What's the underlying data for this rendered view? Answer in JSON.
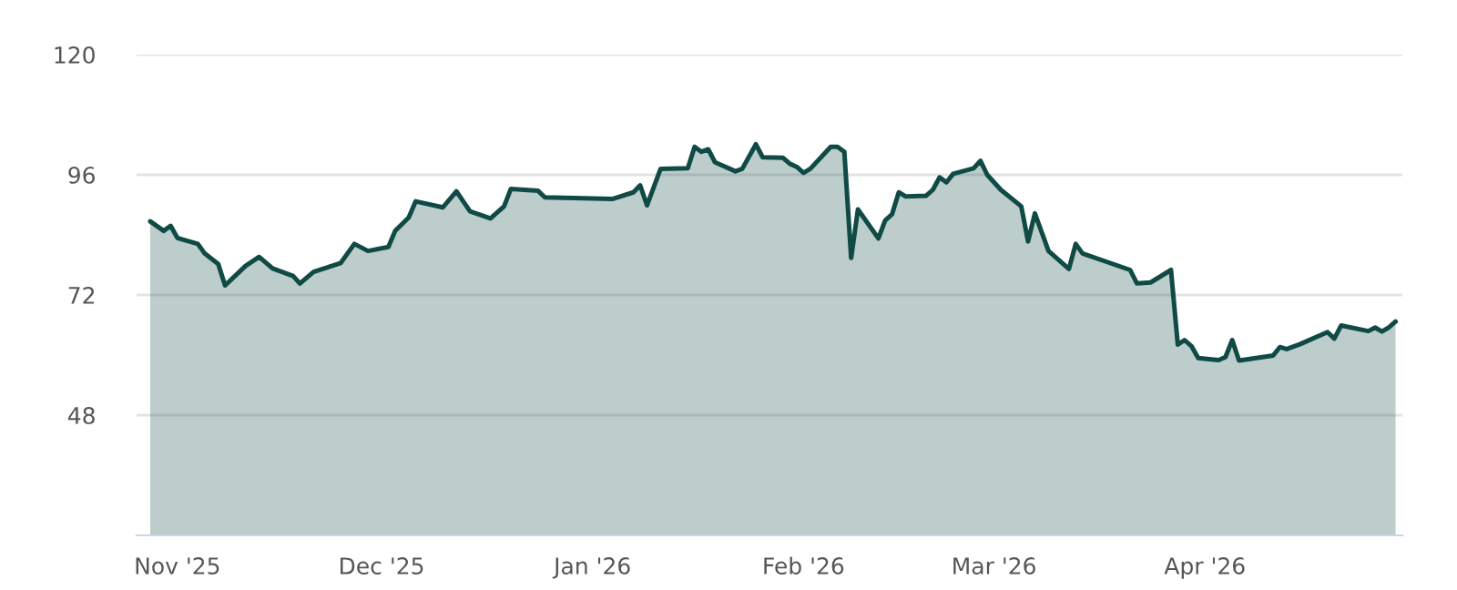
{
  "chart_data": {
    "type": "area",
    "x": [
      "2025-10-28",
      "2025-10-30",
      "2025-10-31",
      "2025-11-01",
      "2025-11-04",
      "2025-11-05",
      "2025-11-07",
      "2025-11-08",
      "2025-11-11",
      "2025-11-13",
      "2025-11-15",
      "2025-11-18",
      "2025-11-19",
      "2025-11-21",
      "2025-11-25",
      "2025-11-27",
      "2025-11-29",
      "2025-12-02",
      "2025-12-03",
      "2025-12-05",
      "2025-12-06",
      "2025-12-10",
      "2025-12-12",
      "2025-12-14",
      "2025-12-17",
      "2025-12-19",
      "2025-12-20",
      "2025-12-24",
      "2025-12-25",
      "2026-01-04",
      "2026-01-07",
      "2026-01-08",
      "2026-01-09",
      "2026-01-11",
      "2026-01-15",
      "2026-01-16",
      "2026-01-17",
      "2026-01-18",
      "2026-01-19",
      "2026-01-22",
      "2026-01-23",
      "2026-01-25",
      "2026-01-26",
      "2026-01-29",
      "2026-01-30",
      "2026-01-31",
      "2026-02-01",
      "2026-02-02",
      "2026-02-05",
      "2026-02-06",
      "2026-02-07",
      "2026-02-08",
      "2026-02-09",
      "2026-02-12",
      "2026-02-13",
      "2026-02-14",
      "2026-02-15",
      "2026-02-16",
      "2026-02-19",
      "2026-02-20",
      "2026-02-21",
      "2026-02-22",
      "2026-02-23",
      "2026-02-26",
      "2026-02-27",
      "2026-02-28",
      "2026-03-02",
      "2026-03-05",
      "2026-03-06",
      "2026-03-07",
      "2026-03-09",
      "2026-03-12",
      "2026-03-13",
      "2026-03-14",
      "2026-03-21",
      "2026-03-22",
      "2026-03-24",
      "2026-03-27",
      "2026-03-28",
      "2026-03-29",
      "2026-03-30",
      "2026-03-31",
      "2026-04-03",
      "2026-04-04",
      "2026-04-05",
      "2026-04-06",
      "2026-04-11",
      "2026-04-12",
      "2026-04-13",
      "2026-04-15",
      "2026-04-19",
      "2026-04-20",
      "2026-04-21",
      "2026-04-25",
      "2026-04-26",
      "2026-04-27",
      "2026-04-28",
      "2026-04-29"
    ],
    "series": [
      {
        "color": "#0f4a45",
        "values": [
          86.7,
          84.8,
          85.8,
          83.4,
          82.2,
          80.3,
          78.2,
          73.9,
          77.8,
          79.6,
          77.3,
          75.8,
          74.3,
          76.6,
          78.4,
          82.2,
          80.8,
          81.6,
          84.8,
          87.5,
          90.7,
          89.5,
          92.7,
          88.7,
          87.3,
          89.7,
          93.2,
          92.8,
          91.5,
          91.2,
          92.5,
          93.9,
          89.9,
          97.2,
          97.3,
          101.6,
          100.6,
          101.1,
          98.5,
          96.7,
          97.2,
          102.1,
          99.5,
          99.4,
          98.2,
          97.6,
          96.4,
          97.2,
          101.6,
          101.6,
          100.6,
          79.4,
          89.1,
          83.3,
          86.9,
          88.1,
          92.5,
          91.7,
          91.8,
          93.0,
          95.5,
          94.5,
          96.2,
          97.3,
          98.8,
          96.0,
          93.0,
          89.7,
          82.7,
          88.3,
          80.8,
          77.2,
          82.2,
          80.3,
          77.0,
          74.3,
          74.5,
          77.0,
          62.1,
          63.0,
          61.8,
          59.4,
          59.0,
          59.6,
          63.0,
          58.9,
          59.9,
          61.6,
          61.2,
          62.2,
          64.6,
          63.3,
          65.9,
          64.8,
          65.5,
          64.7,
          65.5,
          66.7
        ]
      }
    ],
    "xlim": [
      "2025-10-26",
      "2026-04-30"
    ],
    "xticks": [
      {
        "value": "2025-11-01",
        "label": "Nov '25"
      },
      {
        "value": "2025-12-01",
        "label": "Dec '25"
      },
      {
        "value": "2026-01-01",
        "label": "Jan '26"
      },
      {
        "value": "2026-02-01",
        "label": "Feb '26"
      },
      {
        "value": "2026-03-01",
        "label": "Mar '26"
      },
      {
        "value": "2026-04-01",
        "label": "Apr '26"
      }
    ],
    "ylim": [
      24,
      120
    ],
    "yticks": [
      48,
      72,
      96,
      120
    ],
    "grid": "y"
  }
}
